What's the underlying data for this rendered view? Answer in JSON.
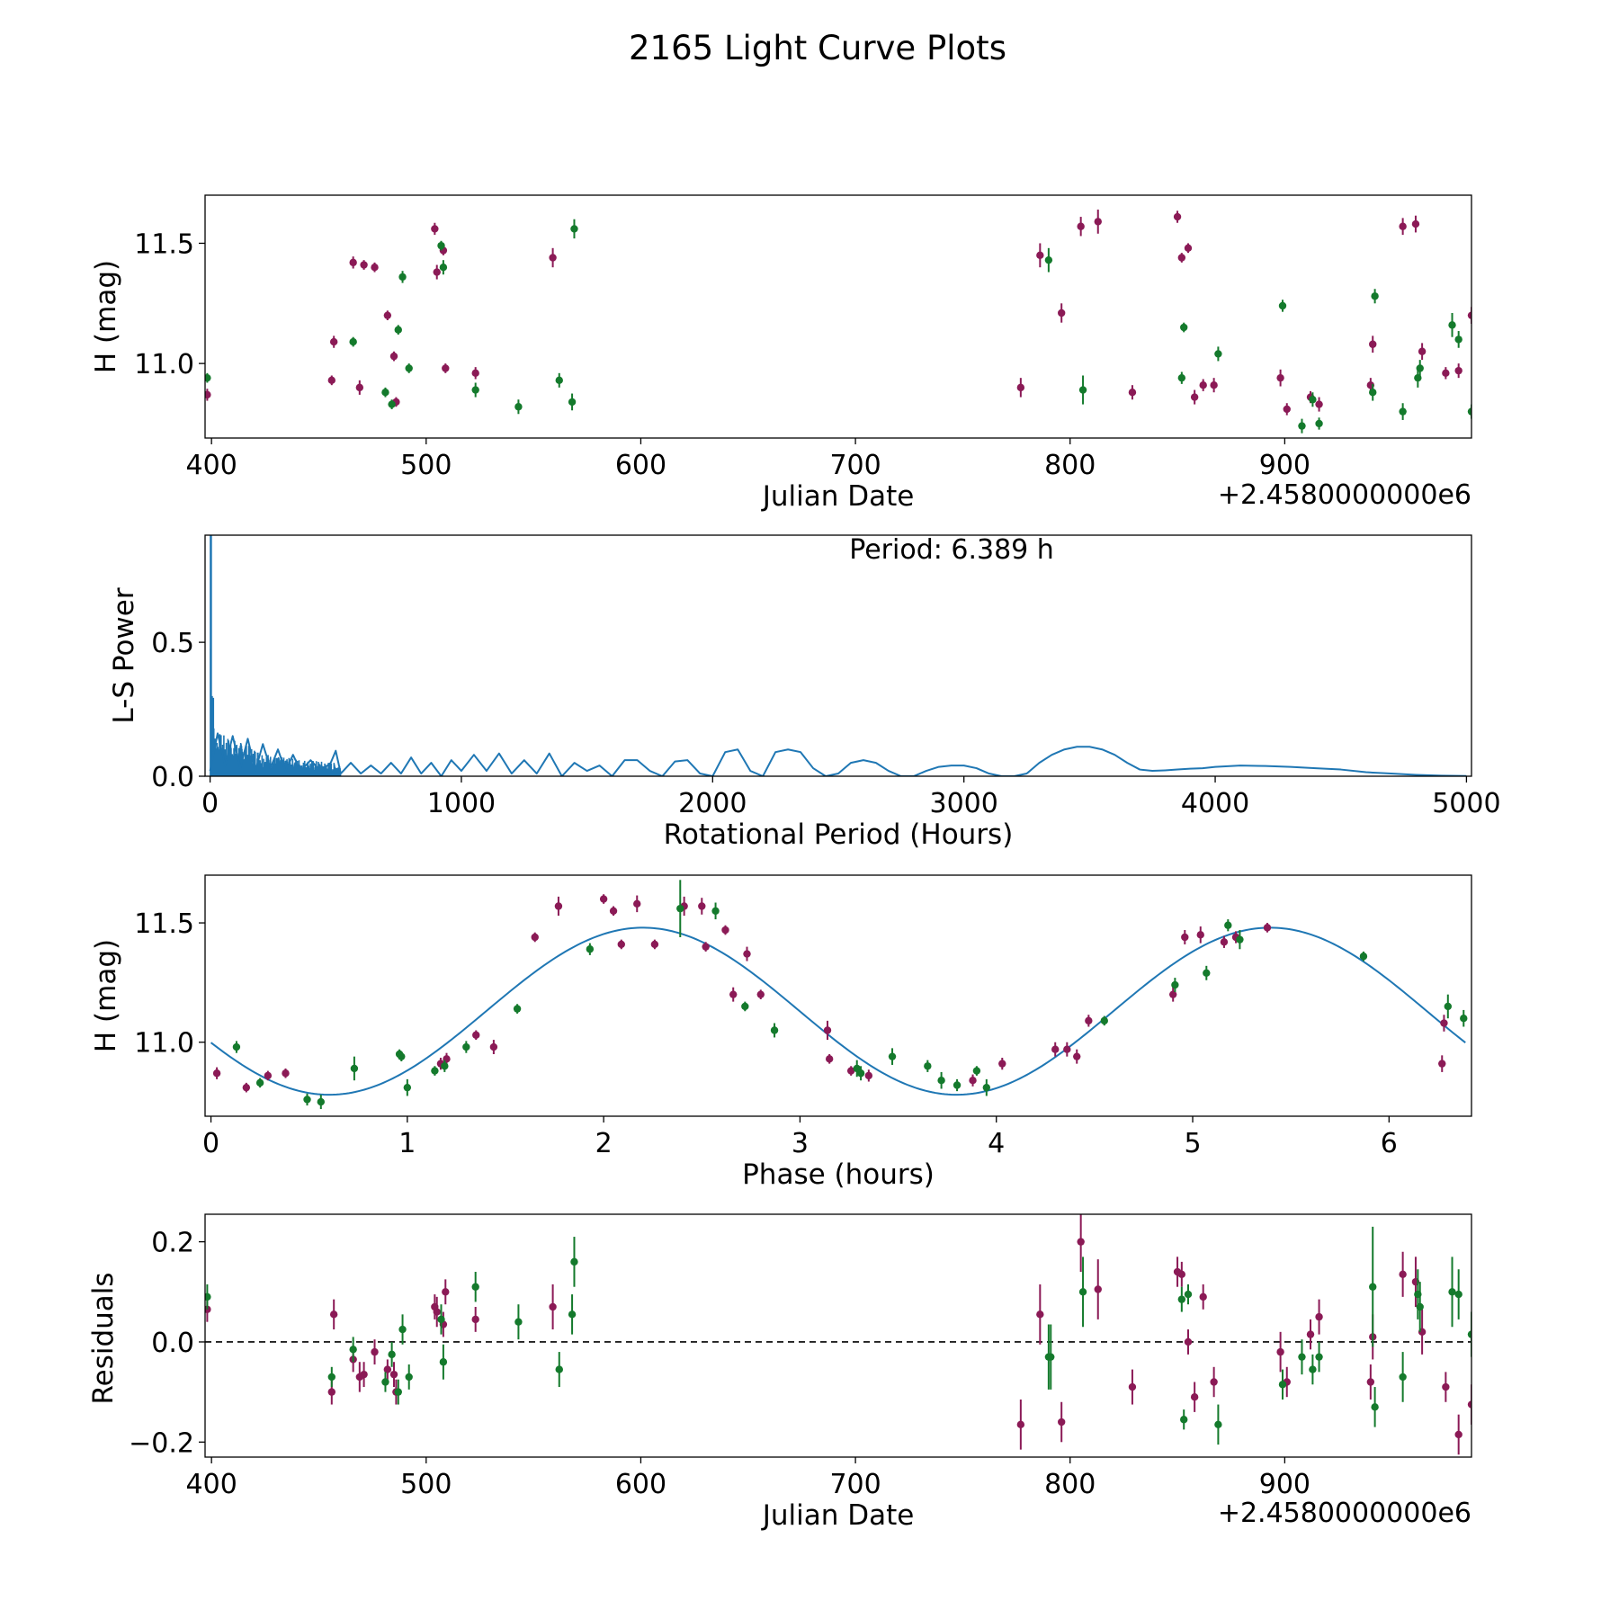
{
  "figure_title": "2165 Light Curve Plots",
  "colors": {
    "red": "#8b1a56",
    "green": "#147a2c",
    "curve": "#1f77b4",
    "axes": "#000000"
  },
  "chart_data": [
    {
      "id": "p1",
      "type": "scatter",
      "title": "",
      "xlabel": "Julian Date",
      "ylabel": "H (mag)",
      "xlim": [
        397,
        987
      ],
      "ylim": [
        10.69,
        11.7
      ],
      "xticks": [
        400,
        500,
        600,
        700,
        800,
        900
      ],
      "xtick_labels": [
        "400",
        "500",
        "600",
        "700",
        "800",
        "900"
      ],
      "yticks": [
        11.0,
        11.5
      ],
      "ytick_labels": [
        "11.0",
        "11.5"
      ],
      "offset_text": "+2.4580000000e6",
      "series": [
        {
          "name": "red",
          "color": "#8b1a56",
          "x": [
            398,
            456,
            457,
            466,
            469,
            471,
            476,
            482,
            485,
            486,
            504,
            505,
            508,
            509,
            523,
            559,
            777,
            786,
            796,
            805,
            813,
            829,
            850,
            852,
            855,
            858,
            862,
            867,
            898,
            901,
            912,
            916,
            940,
            941,
            955,
            961,
            964,
            975,
            981,
            987
          ],
          "y": [
            10.87,
            10.93,
            11.09,
            11.42,
            10.9,
            11.41,
            11.4,
            11.2,
            11.03,
            10.84,
            11.56,
            11.38,
            11.47,
            10.98,
            10.96,
            11.44,
            10.9,
            11.45,
            11.21,
            11.57,
            11.59,
            10.88,
            11.61,
            11.44,
            11.48,
            10.86,
            10.91,
            10.91,
            10.94,
            10.81,
            10.86,
            10.83,
            10.91,
            11.08,
            11.57,
            11.58,
            11.05,
            10.96,
            10.97,
            11.2
          ],
          "err": [
            0.025,
            0.02,
            0.025,
            0.025,
            0.03,
            0.02,
            0.02,
            0.02,
            0.02,
            0.02,
            0.025,
            0.03,
            0.02,
            0.02,
            0.025,
            0.04,
            0.04,
            0.05,
            0.04,
            0.04,
            0.05,
            0.03,
            0.025,
            0.02,
            0.02,
            0.03,
            0.025,
            0.03,
            0.035,
            0.025,
            0.025,
            0.03,
            0.03,
            0.035,
            0.035,
            0.035,
            0.035,
            0.025,
            0.03,
            0.035
          ]
        },
        {
          "name": "green",
          "color": "#147a2c",
          "x": [
            398,
            466,
            481,
            484,
            487,
            489,
            492,
            507,
            508,
            523,
            543,
            562,
            568,
            569,
            790,
            806,
            852,
            853,
            869,
            899,
            908,
            913,
            916,
            941,
            942,
            955,
            962,
            963,
            978,
            981,
            987
          ],
          "y": [
            10.94,
            11.09,
            10.88,
            10.83,
            11.14,
            11.36,
            10.98,
            11.49,
            11.4,
            10.89,
            10.82,
            10.93,
            10.84,
            11.56,
            11.43,
            10.89,
            10.94,
            11.15,
            11.04,
            11.24,
            10.74,
            10.85,
            10.75,
            10.88,
            11.28,
            10.8,
            10.94,
            10.98,
            11.16,
            11.1,
            10.8
          ],
          "err": [
            0.02,
            0.02,
            0.02,
            0.02,
            0.02,
            0.025,
            0.02,
            0.02,
            0.03,
            0.03,
            0.03,
            0.03,
            0.035,
            0.04,
            0.05,
            0.06,
            0.025,
            0.02,
            0.03,
            0.025,
            0.03,
            0.03,
            0.025,
            0.035,
            0.03,
            0.035,
            0.04,
            0.035,
            0.05,
            0.035,
            0.03
          ]
        }
      ]
    },
    {
      "id": "p2",
      "type": "line",
      "title": "",
      "xlabel": "Rotational Period (Hours)",
      "ylabel": "L-S Power",
      "xlim": [
        -20,
        5020
      ],
      "ylim": [
        0,
        0.9
      ],
      "xticks": [
        0,
        1000,
        2000,
        3000,
        4000,
        5000
      ],
      "xtick_labels": [
        "0",
        "1000",
        "2000",
        "3000",
        "4000",
        "5000"
      ],
      "yticks": [
        0.0,
        0.5
      ],
      "ytick_labels": [
        "0.0",
        "0.5"
      ],
      "annotation": "Period: 6.389 h",
      "series": [
        {
          "name": "power",
          "color": "#1f77b4",
          "x": [
            0,
            30,
            60,
            90,
            120,
            150,
            180,
            210,
            240,
            270,
            300,
            330,
            360,
            400,
            440,
            480,
            500,
            520,
            560,
            600,
            640,
            680,
            720,
            760,
            800,
            840,
            880,
            920,
            960,
            1000,
            1050,
            1100,
            1150,
            1200,
            1250,
            1300,
            1350,
            1400,
            1450,
            1500,
            1550,
            1600,
            1650,
            1700,
            1750,
            1800,
            1850,
            1900,
            1950,
            2000,
            2050,
            2100,
            2150,
            2200,
            2250,
            2300,
            2350,
            2400,
            2450,
            2500,
            2550,
            2600,
            2650,
            2700,
            2750,
            2800,
            2850,
            2900,
            2950,
            3000,
            3050,
            3100,
            3150,
            3200,
            3250,
            3300,
            3350,
            3400,
            3450,
            3500,
            3550,
            3600,
            3650,
            3700,
            3750,
            3800,
            3850,
            3900,
            3950,
            4000,
            4100,
            4200,
            4300,
            4400,
            4500,
            4600,
            4700,
            4800,
            4900,
            5000
          ],
          "y": [
            0.02,
            0.16,
            0.04,
            0.15,
            0.03,
            0.14,
            0.02,
            0.12,
            0.03,
            0.1,
            0.02,
            0.08,
            0.02,
            0.06,
            0.02,
            0.05,
            0.095,
            0.01,
            0.05,
            0.01,
            0.04,
            0.01,
            0.05,
            0.01,
            0.07,
            0.01,
            0.05,
            0.0,
            0.06,
            0.02,
            0.08,
            0.02,
            0.085,
            0.01,
            0.06,
            0.01,
            0.085,
            0.0,
            0.05,
            0.02,
            0.04,
            0.0,
            0.06,
            0.06,
            0.02,
            0.0,
            0.055,
            0.06,
            0.01,
            0.0,
            0.09,
            0.1,
            0.02,
            0.0,
            0.09,
            0.1,
            0.09,
            0.03,
            0.0,
            0.01,
            0.05,
            0.06,
            0.05,
            0.02,
            0.0,
            0.0,
            0.02,
            0.035,
            0.04,
            0.04,
            0.03,
            0.01,
            0.0,
            0.0,
            0.01,
            0.05,
            0.08,
            0.1,
            0.11,
            0.11,
            0.1,
            0.08,
            0.05,
            0.025,
            0.02,
            0.022,
            0.025,
            0.028,
            0.03,
            0.035,
            0.04,
            0.038,
            0.035,
            0.03,
            0.025,
            0.015,
            0.01,
            0.005,
            0.002,
            0.001
          ]
        }
      ]
    },
    {
      "id": "p3",
      "type": "scatter",
      "title": "",
      "xlabel": "Phase (hours)",
      "ylabel": "H (mag)",
      "xlim": [
        -0.03,
        6.42
      ],
      "ylim": [
        10.69,
        11.7
      ],
      "xticks": [
        0,
        1,
        2,
        3,
        4,
        5,
        6
      ],
      "xtick_labels": [
        "0",
        "1",
        "2",
        "3",
        "4",
        "5",
        "6"
      ],
      "yticks": [
        11.0,
        11.5
      ],
      "ytick_labels": [
        "11.0",
        "11.5"
      ],
      "fit": {
        "name": "sinusoid fit",
        "color": "#1f77b4",
        "period": 3.1945,
        "mean": 11.13,
        "amplitude": 0.35,
        "phase_of_max": 2.2
      },
      "series": [
        {
          "name": "red",
          "color": "#8b1a56",
          "x": [
            0.03,
            0.18,
            0.29,
            0.38,
            1.17,
            1.2,
            1.35,
            1.44,
            1.65,
            1.77,
            2.0,
            2.05,
            2.09,
            2.26,
            2.41,
            2.5,
            2.62,
            2.66,
            2.73,
            2.8,
            3.14,
            3.15,
            3.26,
            4.03,
            4.36,
            4.41,
            4.47,
            4.9,
            4.96,
            5.04,
            5.16,
            5.22,
            5.38,
            6.27,
            6.28,
            2.17,
            2.52,
            3.35,
            3.88,
            4.3
          ],
          "y": [
            10.87,
            10.81,
            10.86,
            10.87,
            10.91,
            10.93,
            11.03,
            10.98,
            11.44,
            11.57,
            11.6,
            11.55,
            11.41,
            11.41,
            11.57,
            11.57,
            11.47,
            11.2,
            11.37,
            11.2,
            11.05,
            10.93,
            10.88,
            10.91,
            10.97,
            10.94,
            11.09,
            11.2,
            11.44,
            11.45,
            11.42,
            11.44,
            11.48,
            10.91,
            11.08,
            11.58,
            11.4,
            10.86,
            10.84,
            10.97
          ],
          "err": [
            0.025,
            0.02,
            0.02,
            0.02,
            0.025,
            0.025,
            0.02,
            0.03,
            0.02,
            0.04,
            0.02,
            0.02,
            0.02,
            0.02,
            0.04,
            0.035,
            0.02,
            0.03,
            0.03,
            0.02,
            0.04,
            0.02,
            0.02,
            0.025,
            0.03,
            0.03,
            0.025,
            0.03,
            0.03,
            0.035,
            0.025,
            0.025,
            0.02,
            0.035,
            0.035,
            0.035,
            0.02,
            0.025,
            0.025,
            0.03
          ]
        },
        {
          "name": "green",
          "color": "#147a2c",
          "x": [
            0.13,
            0.25,
            0.49,
            0.56,
            0.73,
            0.96,
            0.97,
            1.0,
            1.14,
            1.19,
            1.3,
            1.56,
            1.93,
            2.39,
            2.57,
            2.72,
            2.87,
            3.29,
            3.31,
            3.47,
            3.65,
            3.72,
            3.8,
            3.9,
            3.95,
            4.55,
            4.91,
            5.07,
            5.18,
            5.24,
            5.87,
            6.3,
            6.38
          ],
          "y": [
            10.98,
            10.83,
            10.76,
            10.75,
            10.89,
            10.95,
            10.94,
            10.81,
            10.88,
            10.9,
            10.98,
            11.14,
            11.39,
            11.56,
            11.55,
            11.15,
            11.05,
            10.89,
            10.87,
            10.94,
            10.9,
            10.84,
            10.82,
            10.88,
            10.81,
            11.09,
            11.24,
            11.29,
            11.49,
            11.43,
            11.36,
            11.15,
            11.1
          ],
          "err": [
            0.025,
            0.02,
            0.025,
            0.03,
            0.05,
            0.02,
            0.02,
            0.035,
            0.02,
            0.025,
            0.025,
            0.02,
            0.025,
            0.12,
            0.035,
            0.02,
            0.03,
            0.035,
            0.03,
            0.035,
            0.025,
            0.035,
            0.025,
            0.02,
            0.035,
            0.02,
            0.03,
            0.03,
            0.025,
            0.04,
            0.02,
            0.05,
            0.035
          ]
        }
      ]
    },
    {
      "id": "p4",
      "type": "scatter",
      "title": "",
      "xlabel": "Julian Date",
      "ylabel": "Residuals",
      "xlim": [
        397,
        987
      ],
      "ylim": [
        -0.23,
        0.255
      ],
      "xticks": [
        400,
        500,
        600,
        700,
        800,
        900
      ],
      "xtick_labels": [
        "400",
        "500",
        "600",
        "700",
        "800",
        "900"
      ],
      "yticks": [
        -0.2,
        0.0,
        0.2
      ],
      "ytick_labels": [
        "−0.2",
        "0.0",
        "0.2"
      ],
      "offset_text": "+2.4580000000e6",
      "reference_line": {
        "y": 0.0,
        "style": "dashed"
      },
      "series": [
        {
          "name": "red",
          "color": "#8b1a56",
          "x": [
            398,
            456,
            457,
            466,
            469,
            471,
            476,
            482,
            485,
            486,
            504,
            505,
            508,
            509,
            523,
            559,
            777,
            786,
            796,
            805,
            813,
            829,
            850,
            852,
            855,
            858,
            862,
            867,
            898,
            901,
            912,
            916,
            940,
            941,
            955,
            961,
            964,
            975,
            981,
            987
          ],
          "y": [
            0.065,
            -0.1,
            0.055,
            -0.035,
            -0.07,
            -0.065,
            -0.02,
            -0.055,
            -0.065,
            -0.1,
            0.07,
            0.06,
            0.035,
            0.1,
            0.045,
            0.07,
            -0.165,
            0.055,
            -0.16,
            0.2,
            0.105,
            -0.09,
            0.14,
            0.135,
            0.0,
            -0.11,
            0.09,
            -0.08,
            -0.02,
            -0.08,
            0.015,
            0.05,
            -0.08,
            0.01,
            0.135,
            0.12,
            0.02,
            -0.09,
            -0.185,
            -0.125
          ],
          "err": [
            0.025,
            0.025,
            0.03,
            0.025,
            0.03,
            0.025,
            0.025,
            0.02,
            0.025,
            0.025,
            0.025,
            0.03,
            0.025,
            0.025,
            0.025,
            0.045,
            0.05,
            0.06,
            0.04,
            0.06,
            0.06,
            0.035,
            0.03,
            0.025,
            0.025,
            0.03,
            0.025,
            0.03,
            0.04,
            0.03,
            0.03,
            0.035,
            0.035,
            0.045,
            0.045,
            0.05,
            0.045,
            0.03,
            0.04,
            0.04
          ]
        },
        {
          "name": "green",
          "color": "#147a2c",
          "x": [
            398,
            456,
            466,
            481,
            484,
            487,
            489,
            492,
            507,
            508,
            523,
            543,
            562,
            568,
            569,
            790,
            791,
            806,
            852,
            853,
            855,
            869,
            899,
            908,
            913,
            916,
            941,
            942,
            955,
            962,
            963,
            978,
            981,
            987
          ],
          "y": [
            0.09,
            -0.07,
            -0.015,
            -0.08,
            -0.025,
            -0.1,
            0.025,
            -0.07,
            0.045,
            -0.04,
            0.11,
            0.04,
            -0.055,
            0.055,
            0.16,
            -0.03,
            -0.03,
            0.1,
            0.085,
            -0.155,
            0.095,
            -0.165,
            -0.085,
            -0.03,
            -0.055,
            -0.03,
            0.11,
            -0.13,
            -0.07,
            0.095,
            0.07,
            0.1,
            0.095,
            0.015
          ],
          "err": [
            0.025,
            0.02,
            0.025,
            0.02,
            0.025,
            0.025,
            0.03,
            0.025,
            0.03,
            0.035,
            0.03,
            0.035,
            0.035,
            0.04,
            0.05,
            0.065,
            0.065,
            0.07,
            0.025,
            0.02,
            0.02,
            0.04,
            0.03,
            0.035,
            0.03,
            0.03,
            0.12,
            0.04,
            0.05,
            0.05,
            0.05,
            0.07,
            0.05,
            0.045
          ]
        }
      ]
    }
  ]
}
